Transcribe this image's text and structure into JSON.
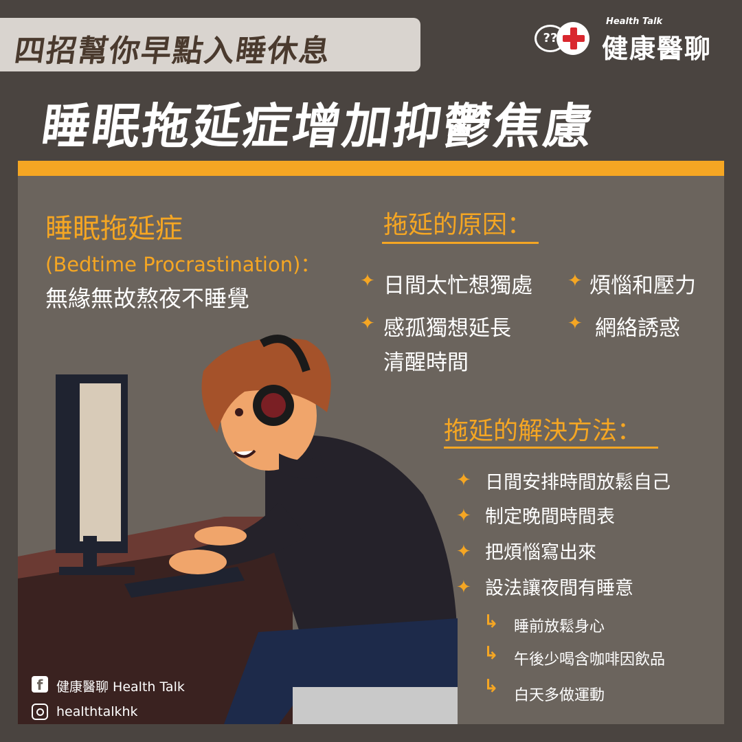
{
  "header": {
    "subtitle": "四招幫你早點入睡休息",
    "title": "睡眠拖延症增加抑鬱焦慮",
    "logo_en": "Health Talk",
    "logo_zh": "健康醫聊",
    "logo_q": "??"
  },
  "definition": {
    "term": "睡眠拖延症",
    "term_en": "(Bedtime Procrastination)：",
    "description": "無緣無故熬夜不睡覺"
  },
  "causes": {
    "heading": "拖延的原因：",
    "items": [
      "日間太忙想獨處",
      "煩惱和壓力",
      "感孤獨想延長",
      "清醒時間",
      "網絡誘惑"
    ]
  },
  "solutions": {
    "heading": "拖延的解決方法：",
    "items": [
      "日間安排時間放鬆自己",
      "制定晚間時間表",
      "把煩惱寫出來",
      "設法讓夜間有睡意"
    ],
    "sub_items": [
      "睡前放鬆身心",
      "午後少喝含咖啡因飲品",
      "白天多做運動"
    ]
  },
  "social": {
    "facebook": "健康醫聊 Health Talk",
    "instagram": "healthtalkhk"
  },
  "icons": {
    "bullet": "star-bullet-icon",
    "sub_bullet": "corner-arrow-icon"
  },
  "colors": {
    "background": "#4a4440",
    "panel": "#6b645d",
    "accent": "#f5a623",
    "subtitle_box": "#d9d4cf",
    "logo_red": "#d9272e"
  }
}
